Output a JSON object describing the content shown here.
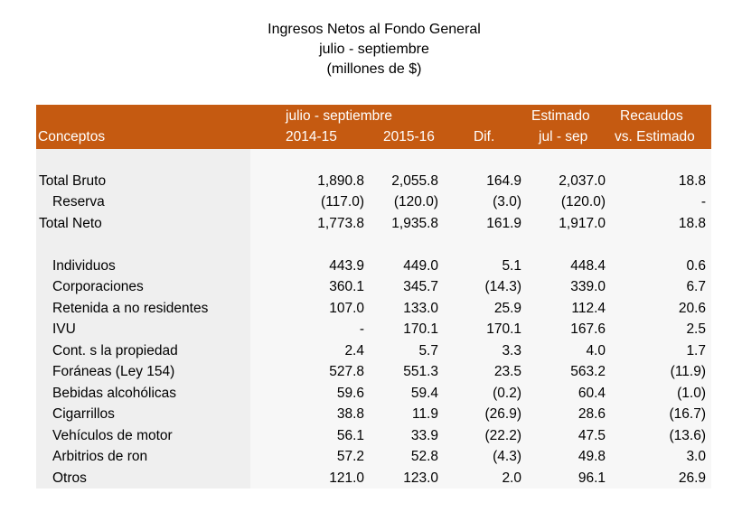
{
  "title": {
    "line1": "Ingresos Netos al Fondo General",
    "line2": "julio - septiembre",
    "line3": "(millones de $)"
  },
  "header": {
    "row1": {
      "period": "julio - septiembre",
      "estimado": "Estimado",
      "recaudos": "Recaudos"
    },
    "row2": {
      "conceptos": "Conceptos",
      "y1": "2014-15",
      "y2": "2015-16",
      "dif": "Dif.",
      "jul_sep": "jul - sep",
      "vs_est": "vs. Estimado"
    }
  },
  "colors": {
    "header_bg": "#c55a11",
    "header_text": "#ffffff",
    "label_bg": "#efefef",
    "values_bg": "#f7f7f7"
  },
  "rows": [
    {
      "label": "Total Bruto",
      "v1": "1,890.8",
      "v2": "2,055.8",
      "dif": "164.9",
      "est": "2,037.0",
      "vs": "18.8"
    },
    {
      "label": "Reserva",
      "v1": "(117.0)",
      "v2": "(120.0)",
      "dif": "(3.0)",
      "est": "(120.0)",
      "vs": "-"
    },
    {
      "label": "Total Neto",
      "v1": "1,773.8",
      "v2": "1,935.8",
      "dif": "161.9",
      "est": "1,917.0",
      "vs": "18.8"
    },
    {
      "label": "Individuos",
      "v1": "443.9",
      "v2": "449.0",
      "dif": "5.1",
      "est": "448.4",
      "vs": "0.6"
    },
    {
      "label": "Corporaciones",
      "v1": "360.1",
      "v2": "345.7",
      "dif": "(14.3)",
      "est": "339.0",
      "vs": "6.7"
    },
    {
      "label": "Retenida a no residentes",
      "v1": "107.0",
      "v2": "133.0",
      "dif": "25.9",
      "est": "112.4",
      "vs": "20.6"
    },
    {
      "label": "IVU",
      "v1": "-",
      "v2": "170.1",
      "dif": "170.1",
      "est": "167.6",
      "vs": "2.5"
    },
    {
      "label": "Cont. s la propiedad",
      "v1": "2.4",
      "v2": "5.7",
      "dif": "3.3",
      "est": "4.0",
      "vs": "1.7"
    },
    {
      "label": "Foráneas (Ley 154)",
      "v1": "527.8",
      "v2": "551.3",
      "dif": "23.5",
      "est": "563.2",
      "vs": "(11.9)"
    },
    {
      "label": "Bebidas alcohólicas",
      "v1": "59.6",
      "v2": "59.4",
      "dif": "(0.2)",
      "est": "60.4",
      "vs": "(1.0)"
    },
    {
      "label": "Cigarrillos",
      "v1": "38.8",
      "v2": "11.9",
      "dif": "(26.9)",
      "est": "28.6",
      "vs": "(16.7)"
    },
    {
      "label": "Vehículos de motor",
      "v1": "56.1",
      "v2": "33.9",
      "dif": "(22.2)",
      "est": "47.5",
      "vs": "(13.6)"
    },
    {
      "label": "Arbitrios de ron",
      "v1": "57.2",
      "v2": "52.8",
      "dif": "(4.3)",
      "est": "49.8",
      "vs": "3.0"
    },
    {
      "label": "Otros",
      "v1": "121.0",
      "v2": "123.0",
      "dif": "2.0",
      "est": "96.1",
      "vs": "26.9"
    }
  ]
}
